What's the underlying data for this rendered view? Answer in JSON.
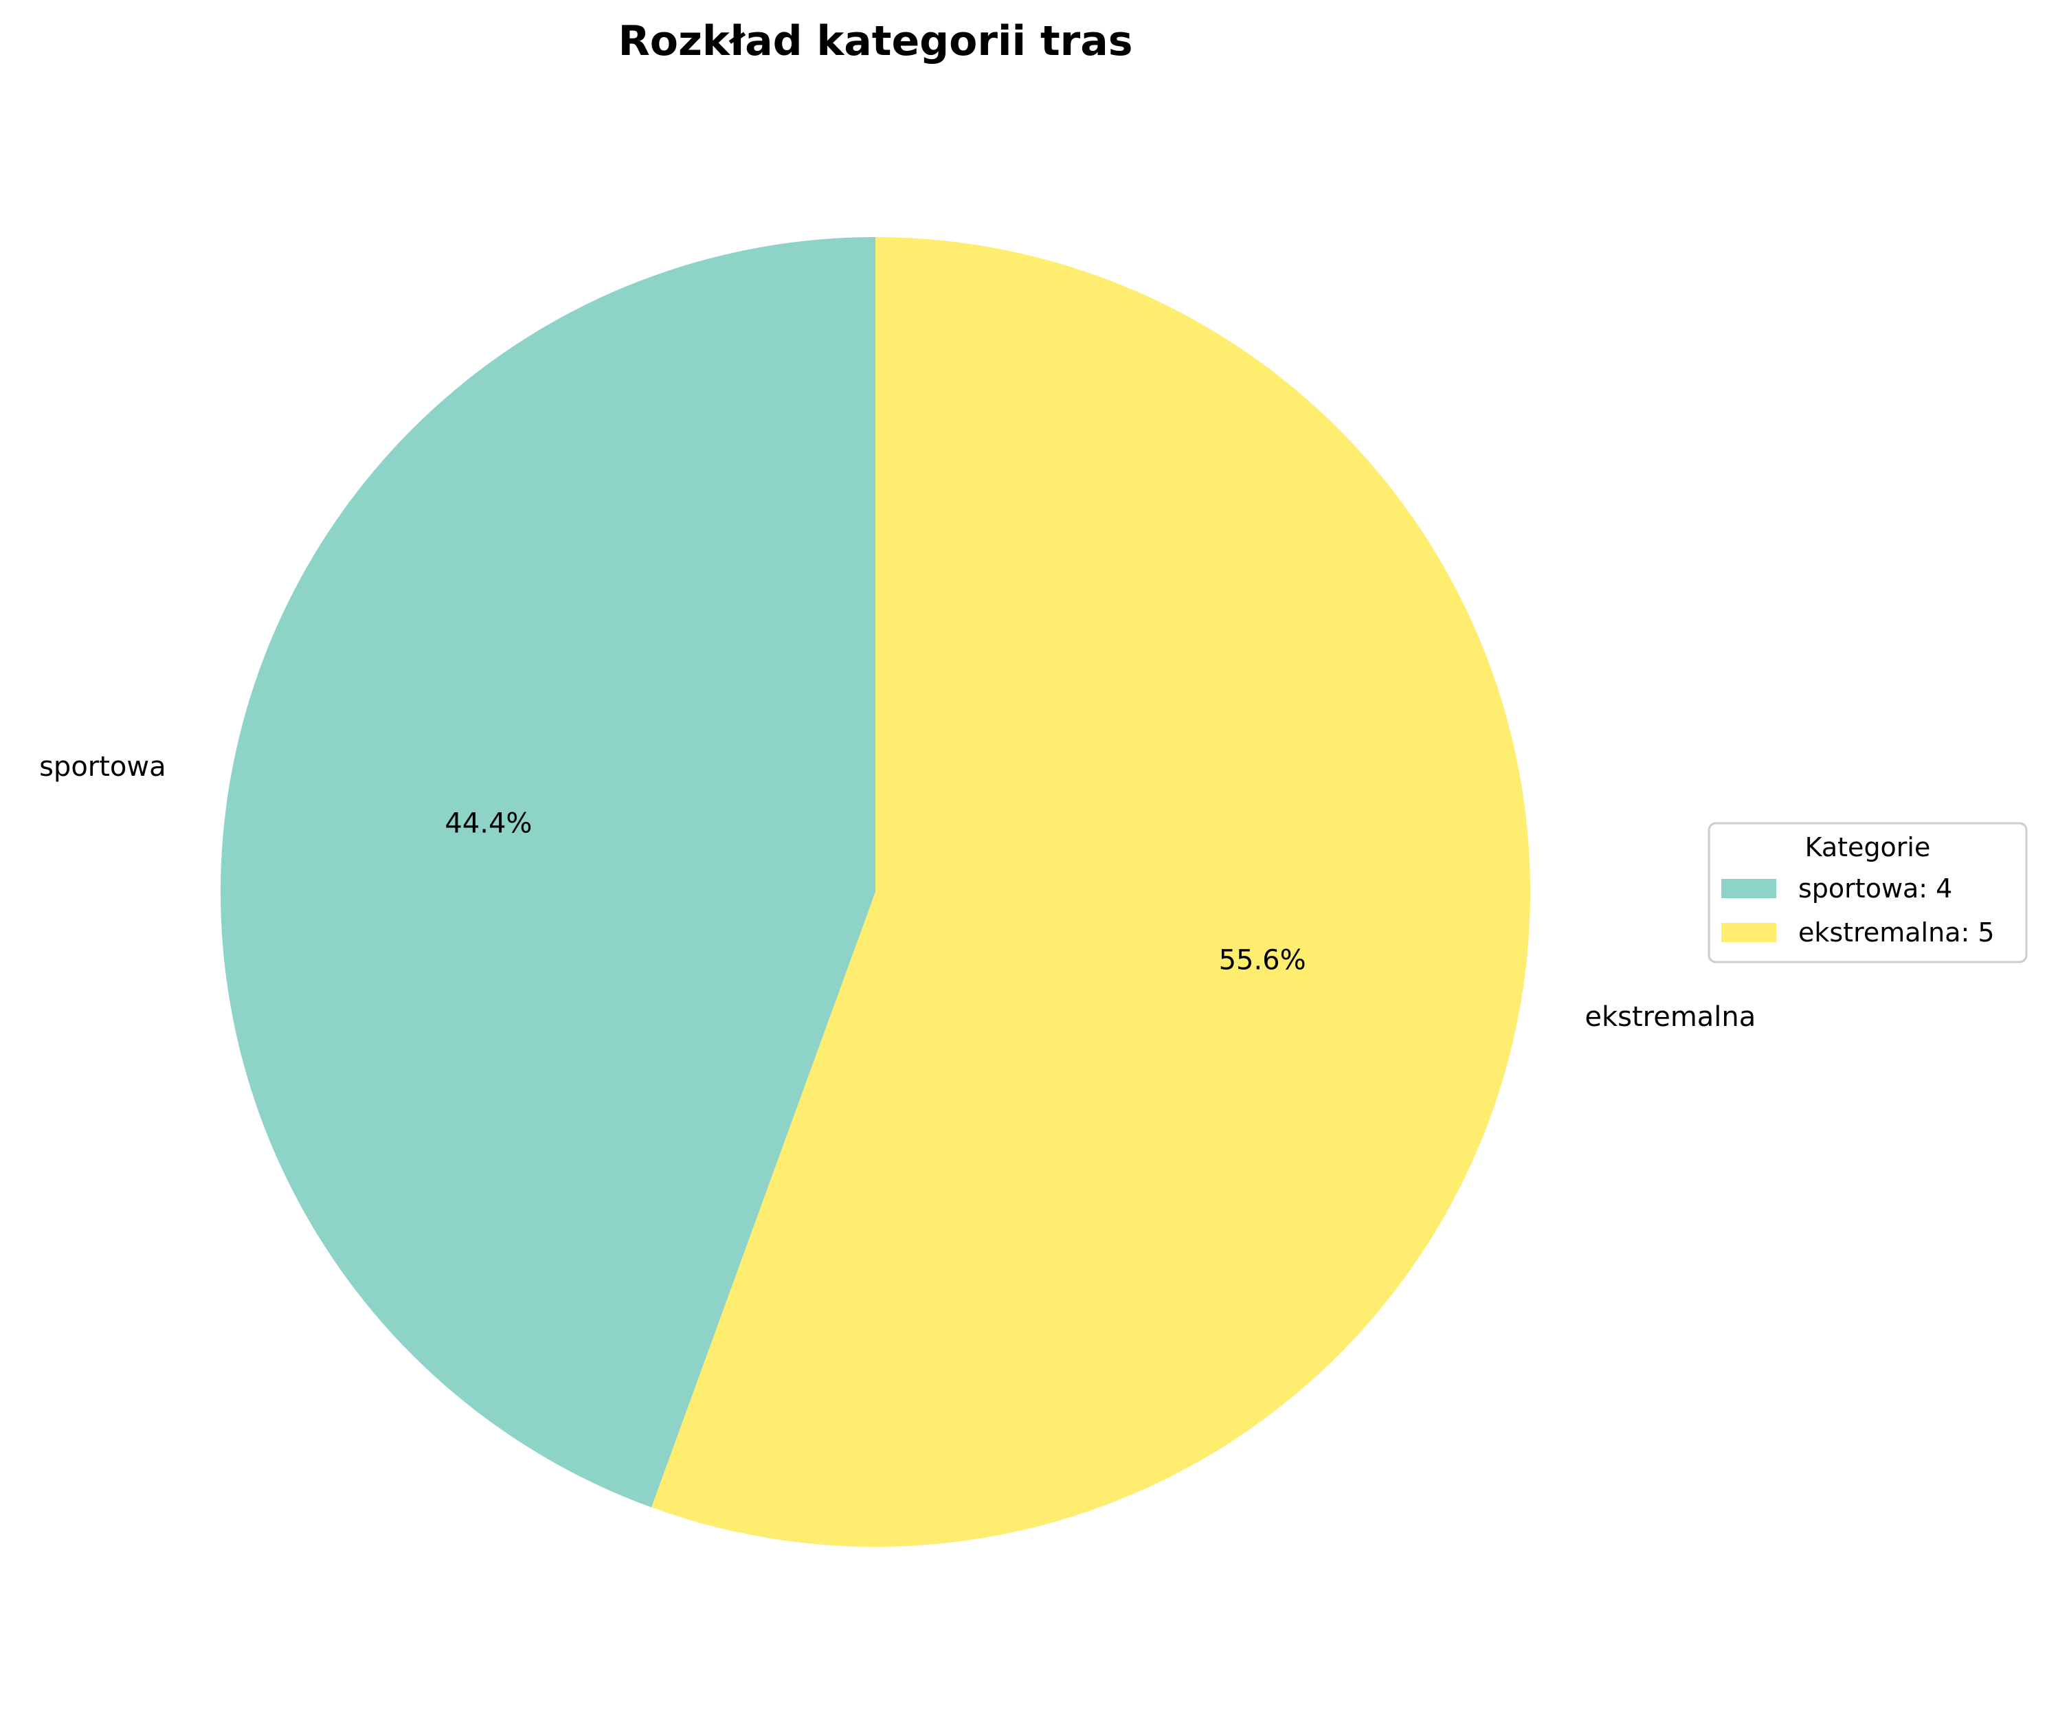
{
  "chart_data": {
    "type": "pie",
    "title": "Rozkład kategorii tras",
    "categories": [
      "sportowa",
      "ekstremalna"
    ],
    "values": [
      4,
      5
    ],
    "percent_labels": [
      "44.4%",
      "55.6%"
    ],
    "colors": [
      "#8ed3c7",
      "#ffed6f"
    ],
    "start_angle_deg": 90,
    "direction": "counterclockwise",
    "legend": {
      "title": "Kategorie",
      "placement": "center-right",
      "entries": [
        "sportowa: 4",
        "ekstremalna: 5"
      ]
    }
  }
}
